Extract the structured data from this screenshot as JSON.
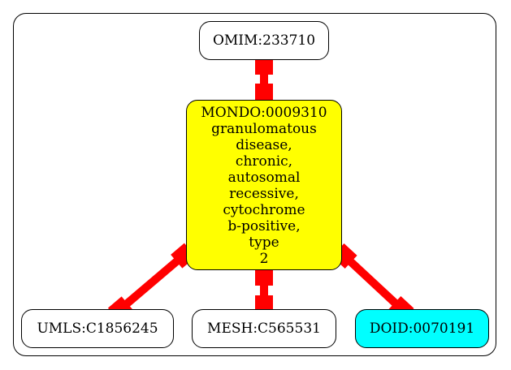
{
  "nodes": {
    "omim": {
      "label": "OMIM:233710",
      "fill": "#ffffff"
    },
    "mondo": {
      "lines": [
        "MONDO:0009310",
        "granulomatous",
        "disease,",
        "chronic,",
        "autosomal",
        "recessive,",
        "cytochrome",
        "b-positive,",
        "type",
        "2"
      ],
      "fill": "#ffff00"
    },
    "umls": {
      "label": "UMLS:C1856245",
      "fill": "#ffffff"
    },
    "mesh": {
      "label": "MESH:C565531",
      "fill": "#ffffff"
    },
    "doid": {
      "label": "DOID:0070191",
      "fill": "#00ffff"
    }
  },
  "edges": {
    "color": "#ff0000"
  }
}
